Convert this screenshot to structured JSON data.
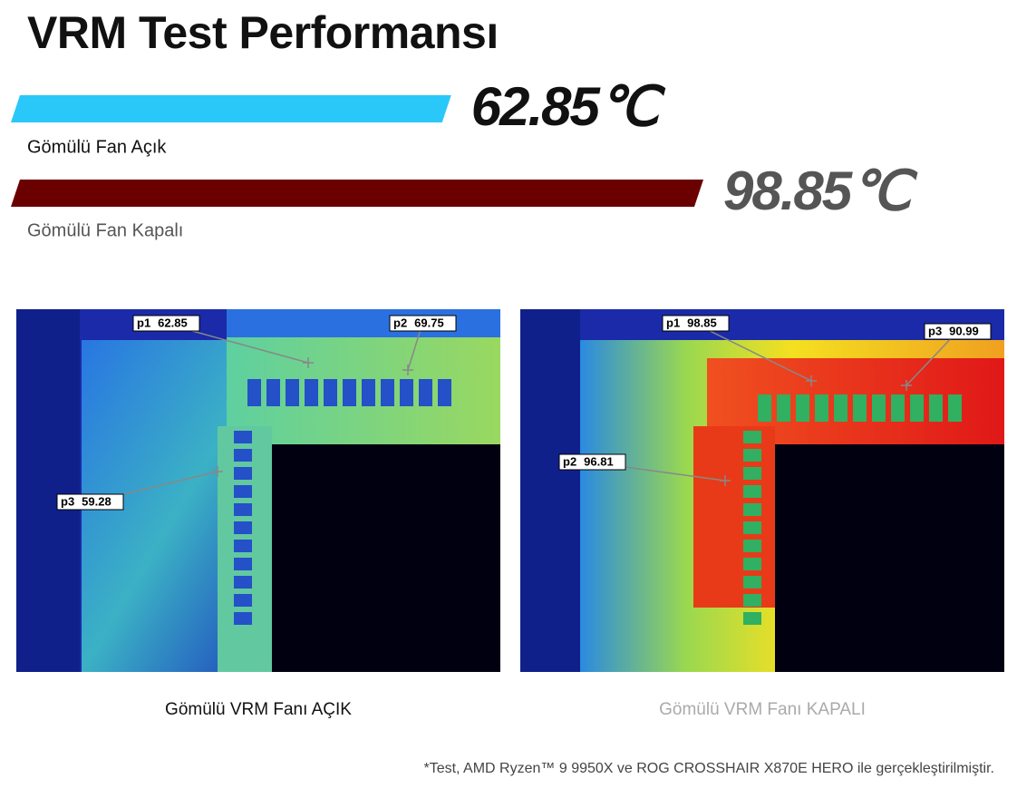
{
  "chart_data": {
    "type": "bar",
    "orientation": "horizontal",
    "title": "VRM Test Performansı",
    "categories": [
      "Gömülü Fan Açık",
      "Gömülü Fan Kapalı"
    ],
    "values": [
      62.85,
      98.85
    ],
    "value_labels": [
      "62.85℃",
      "98.85℃"
    ],
    "colors": [
      "#29c8f8",
      "#6b0000"
    ]
  },
  "thermal_images": [
    {
      "caption": "Gömülü VRM Fanı AÇIK",
      "points": [
        {
          "label": "p1",
          "value": 62.85
        },
        {
          "label": "p2",
          "value": 69.75
        },
        {
          "label": "p3",
          "value": 59.28
        }
      ]
    },
    {
      "caption": "Gömülü VRM Fanı KAPALI",
      "points": [
        {
          "label": "p1",
          "value": 98.85
        },
        {
          "label": "p2",
          "value": 96.81
        },
        {
          "label": "p3",
          "value": 90.99
        }
      ]
    }
  ],
  "footnote": "*Test, AMD Ryzen™ 9 9950X ve ROG CROSSHAIR X870E HERO ile gerçekleştirilmiştir."
}
